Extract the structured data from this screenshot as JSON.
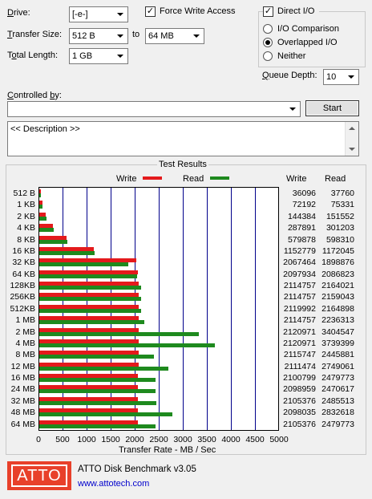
{
  "drive": {
    "label": "Drive:",
    "value": "[-e-]"
  },
  "force_write": {
    "label": "Force Write Access",
    "checked": true
  },
  "direct_io": {
    "label": "Direct I/O",
    "checked": true
  },
  "transfer_size": {
    "label": "Transfer Size:",
    "from": "512 B",
    "to_label": "to",
    "to": "64 MB"
  },
  "total_length": {
    "label": "Total Length:",
    "value": "1 GB"
  },
  "io_modes": [
    {
      "label": "I/O Comparison",
      "selected": false
    },
    {
      "label": "Overlapped I/O",
      "selected": true
    },
    {
      "label": "Neither",
      "selected": false
    }
  ],
  "queue_depth": {
    "label": "Queue Depth:",
    "value": "10"
  },
  "controlled_by": {
    "label": "Controlled by:",
    "value": ""
  },
  "start_button": "Start",
  "description": "<< Description >>",
  "results": {
    "title": "Test Results",
    "write_legend": "Write",
    "read_legend": "Read",
    "write_col": "Write",
    "read_col": "Read",
    "write_color": "#e41a1c",
    "read_color": "#1e8a1e"
  },
  "chart_data": {
    "type": "bar",
    "orientation": "horizontal",
    "categories": [
      "512 B",
      "1 KB",
      "2 KB",
      "4 KB",
      "8 KB",
      "16 KB",
      "32 KB",
      "64 KB",
      "128KB",
      "256KB",
      "512KB",
      "1 MB",
      "2 MB",
      "4 MB",
      "8 MB",
      "12 MB",
      "16 MB",
      "24 MB",
      "32 MB",
      "48 MB",
      "64 MB"
    ],
    "series": [
      {
        "name": "Write",
        "values": [
          36096,
          72192,
          144384,
          287891,
          579878,
          1152779,
          2067464,
          2097934,
          2114757,
          2114757,
          2119992,
          2114757,
          2120971,
          2120971,
          2115747,
          2111474,
          2100799,
          2098959,
          2105376,
          2098035,
          2105376
        ]
      },
      {
        "name": "Read",
        "values": [
          37760,
          75331,
          151552,
          301203,
          598310,
          1172045,
          1898876,
          2086823,
          2164021,
          2159043,
          2164898,
          2236313,
          3404547,
          3739399,
          2445881,
          2749061,
          2479773,
          2470617,
          2485513,
          2832618,
          2479773
        ]
      }
    ],
    "value_labels": {
      "write": [
        "36096",
        "72192",
        "144384",
        "287891",
        "579878",
        "1152779",
        "2067464",
        "2097934",
        "2114757",
        "2114757",
        "2119992",
        "2114757",
        "2120971",
        "2120971",
        "2115747",
        "2111474",
        "2100799",
        "2098959",
        "2105376",
        "2098035",
        "2105376"
      ],
      "read": [
        "37760",
        "75331",
        "151552",
        "301203",
        "598310",
        "1172045",
        "1898876",
        "2086823",
        "2164021",
        "2159043",
        "2164898",
        "2236313",
        "3404547",
        "3739399",
        "2445881",
        "2749061",
        "2479773",
        "2470617",
        "2485513",
        "2832618",
        "2479773"
      ]
    },
    "xlabel": "Transfer Rate - MB / Sec",
    "xlim": [
      0,
      5000
    ],
    "xticks": [
      "0",
      "500",
      "1000",
      "1500",
      "2000",
      "2500",
      "3000",
      "3500",
      "4000",
      "4500",
      "5000"
    ],
    "grid": true
  },
  "footer": {
    "logo": "ATTO",
    "app_name": "ATTO Disk Benchmark v3.05",
    "url": "www.attotech.com",
    "logo_color": "#e8402a"
  }
}
